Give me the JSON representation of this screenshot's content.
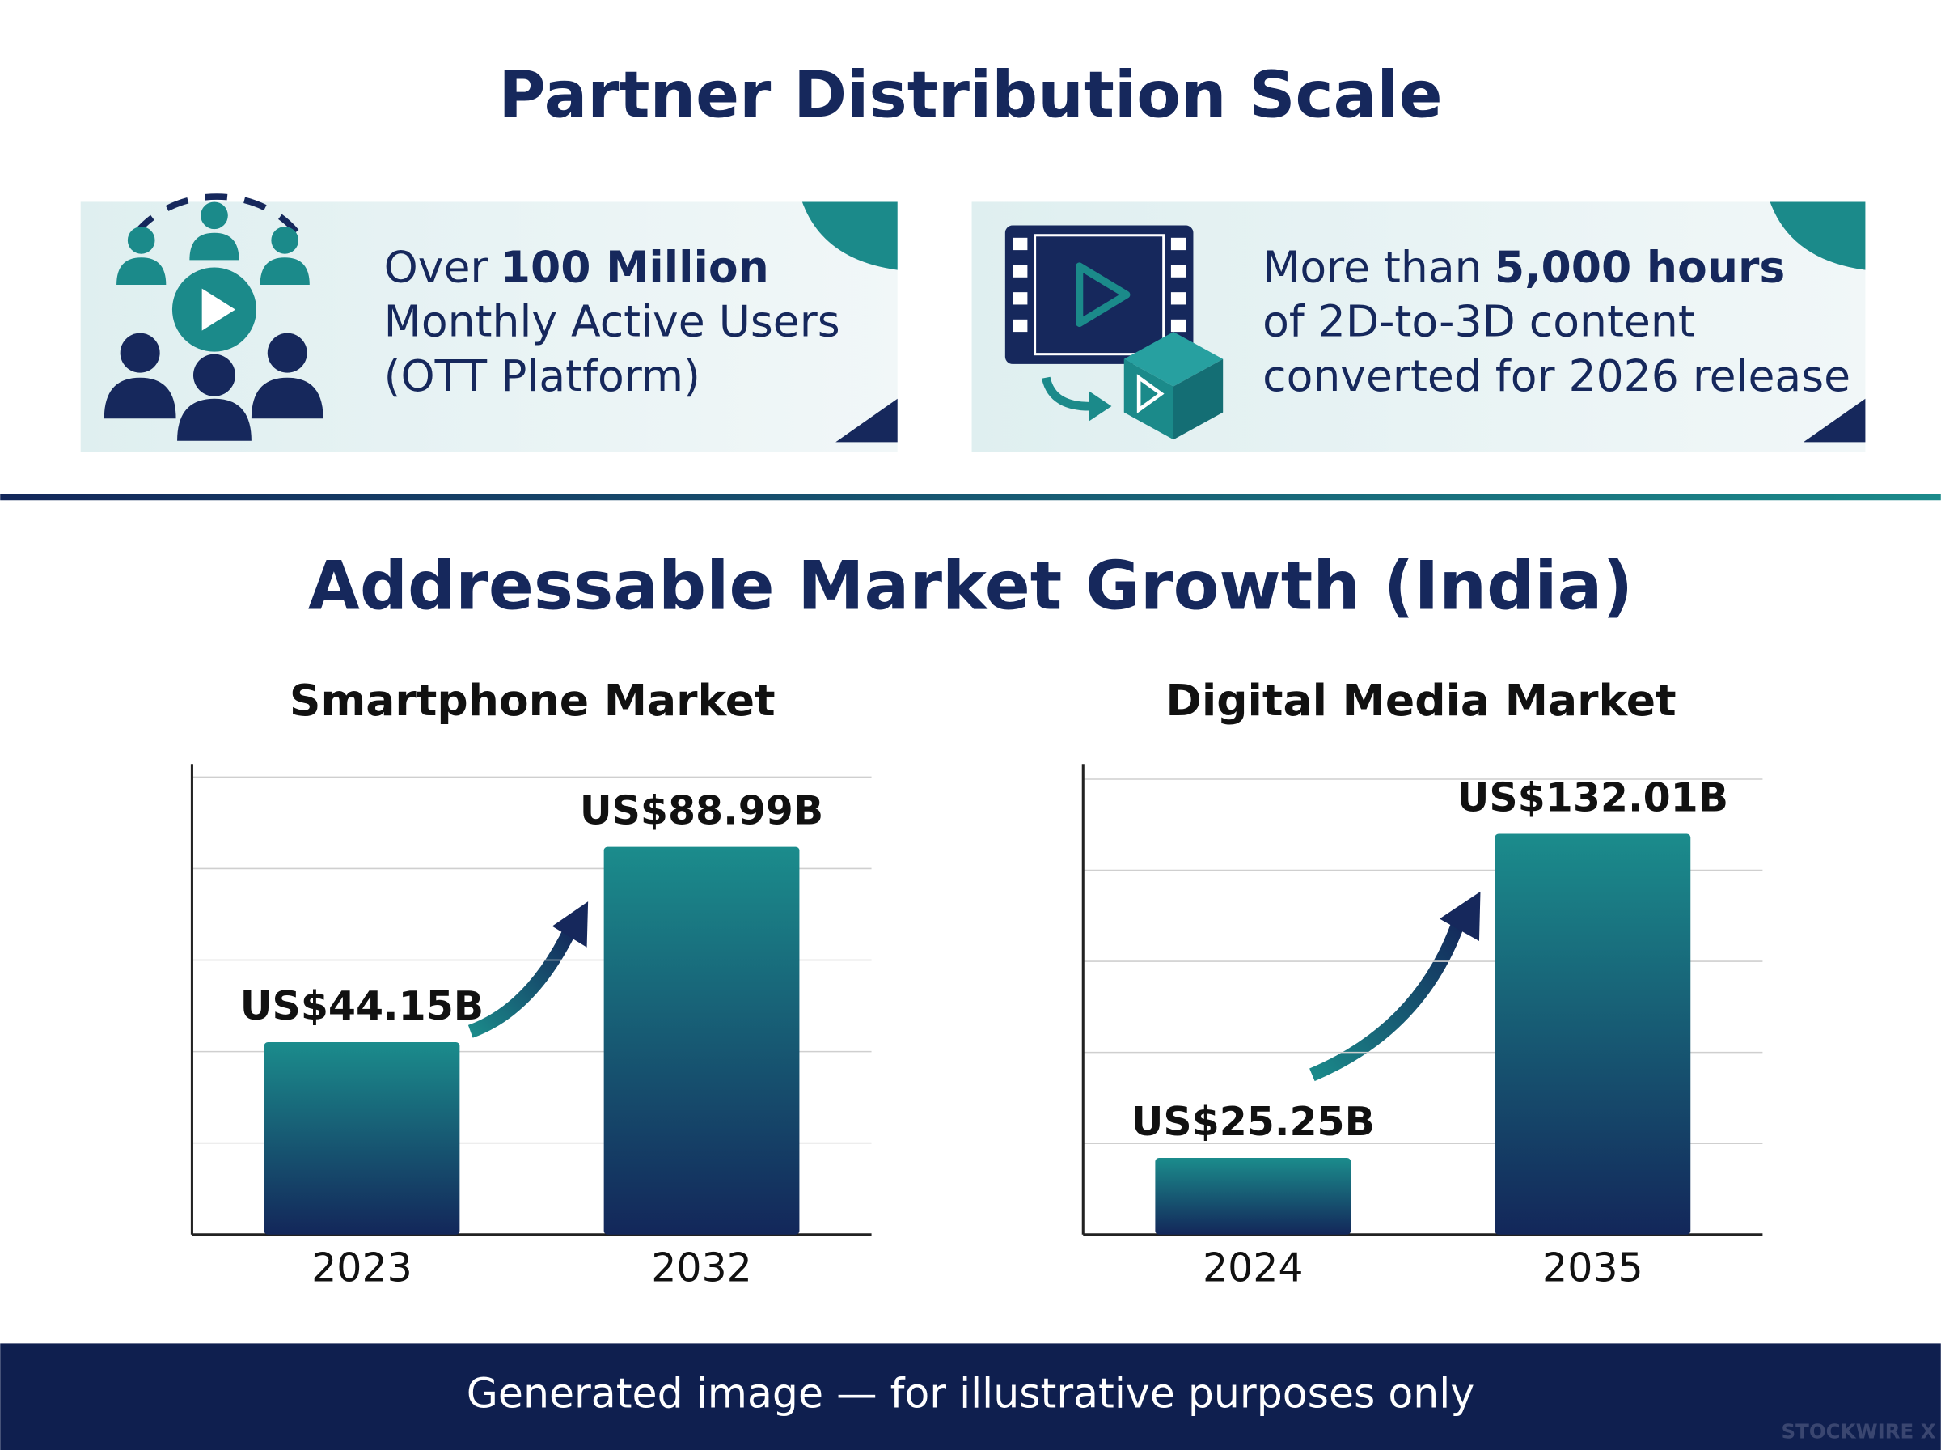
{
  "header": {
    "title": "Partner Distribution Scale"
  },
  "stats": [
    {
      "lead": "Over",
      "highlight": "100 Million",
      "lines": [
        "Monthly Active Users",
        "(OTT Platform)"
      ]
    },
    {
      "lead": "More than",
      "highlight": "5,000 hours",
      "lines": [
        "of 2D-to-3D content",
        "converted for 2026 release"
      ]
    }
  ],
  "section_title": "Addressable Market Growth (India)",
  "chart_data": [
    {
      "type": "bar",
      "title": "Smartphone Market",
      "categories": [
        "2023",
        "2032"
      ],
      "values": [
        44.15,
        88.99
      ],
      "value_labels": [
        "US$44.15B",
        "US$88.99B"
      ],
      "ylim": [
        0,
        108
      ],
      "yticks": [
        21,
        42,
        63,
        84,
        105
      ],
      "grid": true,
      "color": [
        "#1b8c8c",
        "#13275a"
      ]
    },
    {
      "type": "bar",
      "title": "Digital Media Market",
      "categories": [
        "2024",
        "2035"
      ],
      "values": [
        25.25,
        132.01
      ],
      "value_labels": [
        "US$25.25B",
        "US$132.01B"
      ],
      "ylim": [
        0,
        155
      ],
      "yticks": [
        30,
        60,
        90,
        120,
        150
      ],
      "grid": true,
      "color": [
        "#1b8c8c",
        "#13275a"
      ]
    }
  ],
  "footer": {
    "text": "Generated image — for illustrative purposes only",
    "watermark": "STOCKWIRE X"
  }
}
